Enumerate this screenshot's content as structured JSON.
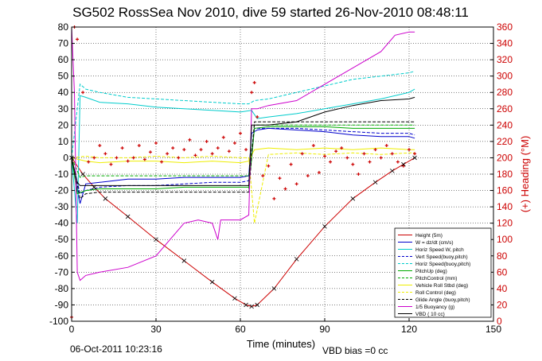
{
  "chart_data": {
    "type": "line",
    "title": "SG502 RossSea Nov 2010, dive 59 started 26-Nov-2010 08:48:11",
    "xlabel": "Time (minutes)",
    "ylabel_right": "(+) Heading (°M)",
    "xlim": [
      0,
      150
    ],
    "ylim": [
      -100,
      80
    ],
    "ylim_right": [
      0,
      360
    ],
    "x_ticks": [
      0,
      30,
      60,
      90,
      120,
      150
    ],
    "y_ticks": [
      -100,
      -90,
      -80,
      -70,
      -60,
      -50,
      -40,
      -30,
      -20,
      -10,
      0,
      10,
      20,
      30,
      40,
      50,
      60,
      70,
      80
    ],
    "y_right_ticks": [
      0,
      20,
      40,
      60,
      80,
      100,
      120,
      140,
      160,
      180,
      200,
      220,
      240,
      260,
      280,
      300,
      320,
      340,
      360
    ],
    "grid": true,
    "legend_position": "bottom-right",
    "footer_left": "06-Oct-2011 10:23:16",
    "footer_right": "VBD bias =0 cc",
    "colors": {
      "axis": "#000000",
      "heading": "#cc0000",
      "height": "#cc0000",
      "w": "#0000cc",
      "horiz": "#00cccc",
      "pitch": "#00aa00",
      "roll": "#eeee00",
      "buoyancy": "#cc00cc",
      "vbd": "#000000"
    },
    "series": [
      {
        "name": "Height (5m)",
        "color": "#cc0000",
        "style": "solid",
        "marker": "x",
        "x": [
          0,
          4,
          8,
          12,
          20,
          30,
          40,
          50,
          58,
          62,
          64,
          66,
          72,
          80,
          90,
          100,
          108,
          114,
          118,
          122
        ],
        "y": [
          0,
          -10,
          -18,
          -25,
          -36,
          -50,
          -63,
          -76,
          -86,
          -90,
          -91,
          -90,
          -80,
          -62,
          -42,
          -25,
          -15,
          -8,
          -4,
          0
        ]
      },
      {
        "name": "W = dz/dt (cm/s)",
        "color": "#0000cc",
        "style": "solid",
        "x": [
          0,
          2,
          3,
          5,
          10,
          20,
          30,
          40,
          50,
          60,
          63,
          64,
          66,
          70,
          80,
          90,
          100,
          110,
          120,
          122
        ],
        "y": [
          0,
          -20,
          -28,
          -16,
          -15,
          -13,
          -13,
          -12,
          -12,
          -12,
          -11,
          15,
          17,
          18,
          17,
          16,
          14,
          13,
          13,
          12
        ]
      },
      {
        "name": "Horiz Speed W, pitch",
        "color": "#00cccc",
        "style": "solid",
        "x": [
          0,
          2,
          3,
          5,
          10,
          20,
          30,
          40,
          50,
          60,
          64,
          66,
          70,
          80,
          90,
          100,
          110,
          120,
          122
        ],
        "y": [
          0,
          -40,
          38,
          37,
          34,
          33,
          31,
          30,
          29,
          28,
          29,
          24,
          25,
          27,
          30,
          33,
          36,
          40,
          42
        ]
      },
      {
        "name": "Vert Speed(buoy,pitch)",
        "color": "#0000cc",
        "style": "dashed",
        "x": [
          0,
          3,
          5,
          10,
          20,
          30,
          40,
          50,
          60,
          63,
          65,
          70,
          80,
          90,
          100,
          110,
          120,
          122
        ],
        "y": [
          0,
          -22,
          -20,
          -18,
          -17,
          -17,
          -16,
          -15,
          -15,
          -14,
          18,
          18,
          18,
          17,
          16,
          15,
          15,
          14
        ]
      },
      {
        "name": "Horiz Speed(buoy,pitch)",
        "color": "#00cccc",
        "style": "dashed",
        "x": [
          0,
          3,
          5,
          10,
          20,
          30,
          40,
          50,
          60,
          63,
          65,
          70,
          80,
          90,
          100,
          110,
          120,
          122
        ],
        "y": [
          0,
          45,
          42,
          40,
          37,
          36,
          35,
          34,
          33,
          33,
          35,
          36,
          40,
          44,
          48,
          50,
          52,
          53
        ]
      },
      {
        "name": "PitchUp (deg)",
        "color": "#00aa00",
        "style": "solid",
        "x": [
          0,
          2,
          5,
          10,
          20,
          30,
          40,
          50,
          60,
          63,
          65,
          70,
          80,
          90,
          100,
          110,
          120,
          122
        ],
        "y": [
          0,
          -22,
          -20,
          -19,
          -19,
          -19,
          -18,
          -18,
          -18,
          -18,
          18,
          19,
          19,
          19,
          18,
          18,
          18,
          18
        ]
      },
      {
        "name": "PitchControl (mm)",
        "color": "#00aa00",
        "style": "dashed",
        "x": [
          0,
          3,
          5,
          10,
          20,
          30,
          40,
          50,
          60,
          63,
          65,
          70,
          80,
          90,
          100,
          110,
          120,
          122
        ],
        "y": [
          0,
          -12,
          -11,
          -11,
          -11,
          -11,
          -11,
          -11,
          -11,
          -11,
          20,
          20,
          20,
          20,
          20,
          20,
          20,
          20
        ]
      },
      {
        "name": "Vehicle Roll Stbd (deg)",
        "color": "#eeee00",
        "style": "solid",
        "x": [
          0,
          5,
          10,
          20,
          30,
          40,
          50,
          60,
          63,
          65,
          70,
          80,
          90,
          100,
          110,
          120,
          122
        ],
        "y": [
          0,
          -2,
          -3,
          -2,
          -2,
          -3,
          -2,
          -3,
          -2,
          5,
          6,
          5,
          6,
          5,
          6,
          5,
          5
        ]
      },
      {
        "name": "Roll Control (deg)",
        "color": "#eeee00",
        "style": "dashed",
        "x": [
          0,
          5,
          10,
          20,
          30,
          40,
          50,
          60,
          63,
          65,
          70,
          80,
          90,
          100,
          110,
          120,
          122
        ],
        "y": [
          0,
          1,
          0,
          0,
          1,
          0,
          1,
          0,
          0,
          -40,
          2,
          3,
          2,
          3,
          2,
          3,
          3
        ]
      },
      {
        "name": "Glide Angle (buoy,pitch)",
        "color": "#000000",
        "style": "dashed",
        "x": [
          0,
          3,
          5,
          10,
          20,
          30,
          40,
          50,
          60,
          63,
          65,
          70,
          80,
          90,
          100,
          110,
          120,
          122
        ],
        "y": [
          0,
          -25,
          -22,
          -21,
          -21,
          -21,
          -21,
          -21,
          -21,
          -21,
          22,
          22,
          22,
          22,
          22,
          22,
          22,
          22
        ]
      },
      {
        "name": "1/5 Buoyancy (g)",
        "color": "#cc00cc",
        "style": "solid",
        "x": [
          0,
          1,
          2,
          3,
          5,
          10,
          20,
          30,
          35,
          40,
          45,
          50,
          52,
          53,
          60,
          63,
          64,
          66,
          70,
          80,
          90,
          100,
          110,
          115,
          120,
          122
        ],
        "y": [
          80,
          40,
          -70,
          -75,
          -72,
          -70,
          -67,
          -60,
          -50,
          -40,
          -38,
          -40,
          -50,
          -38,
          -38,
          -35,
          30,
          30,
          32,
          35,
          45,
          55,
          65,
          75,
          77,
          77
        ]
      },
      {
        "name": "VBD ( 10 cc)",
        "color": "#000000",
        "style": "solid",
        "x": [
          0,
          2,
          3,
          10,
          20,
          30,
          40,
          50,
          60,
          63,
          64,
          66,
          70,
          80,
          90,
          100,
          110,
          120,
          122
        ],
        "y": [
          0,
          -15,
          -17,
          -17,
          -17,
          -17,
          -17,
          -17,
          -17,
          -17,
          20,
          20,
          20,
          22,
          28,
          32,
          35,
          36,
          37
        ]
      },
      {
        "name": "Heading",
        "color": "#cc0000",
        "style": "markers",
        "axis": "right",
        "x": [
          0,
          1,
          2,
          4,
          6,
          8,
          10,
          12,
          14,
          16,
          18,
          20,
          22,
          24,
          26,
          28,
          30,
          32,
          34,
          36,
          38,
          40,
          42,
          44,
          46,
          48,
          50,
          52,
          54,
          56,
          58,
          60,
          62,
          64,
          65,
          66,
          68,
          70,
          72,
          74,
          76,
          78,
          80,
          82,
          84,
          86,
          88,
          90,
          92,
          94,
          96,
          98,
          100,
          102,
          104,
          106,
          108,
          110,
          112,
          114,
          116,
          118,
          120,
          122
        ],
        "y": [
          5,
          360,
          345,
          280,
          195,
          200,
          215,
          205,
          192,
          200,
          212,
          196,
          200,
          215,
          198,
          207,
          218,
          195,
          205,
          212,
          200,
          210,
          222,
          203,
          210,
          220,
          205,
          212,
          225,
          208,
          218,
          230,
          210,
          280,
          292,
          250,
          178,
          190,
          150,
          175,
          162,
          192,
          168,
          205,
          178,
          215,
          182,
          202,
          195,
          208,
          212,
          200,
          192,
          180,
          205,
          195,
          210,
          200,
          215,
          205,
          195,
          190,
          210,
          205
        ]
      }
    ]
  }
}
